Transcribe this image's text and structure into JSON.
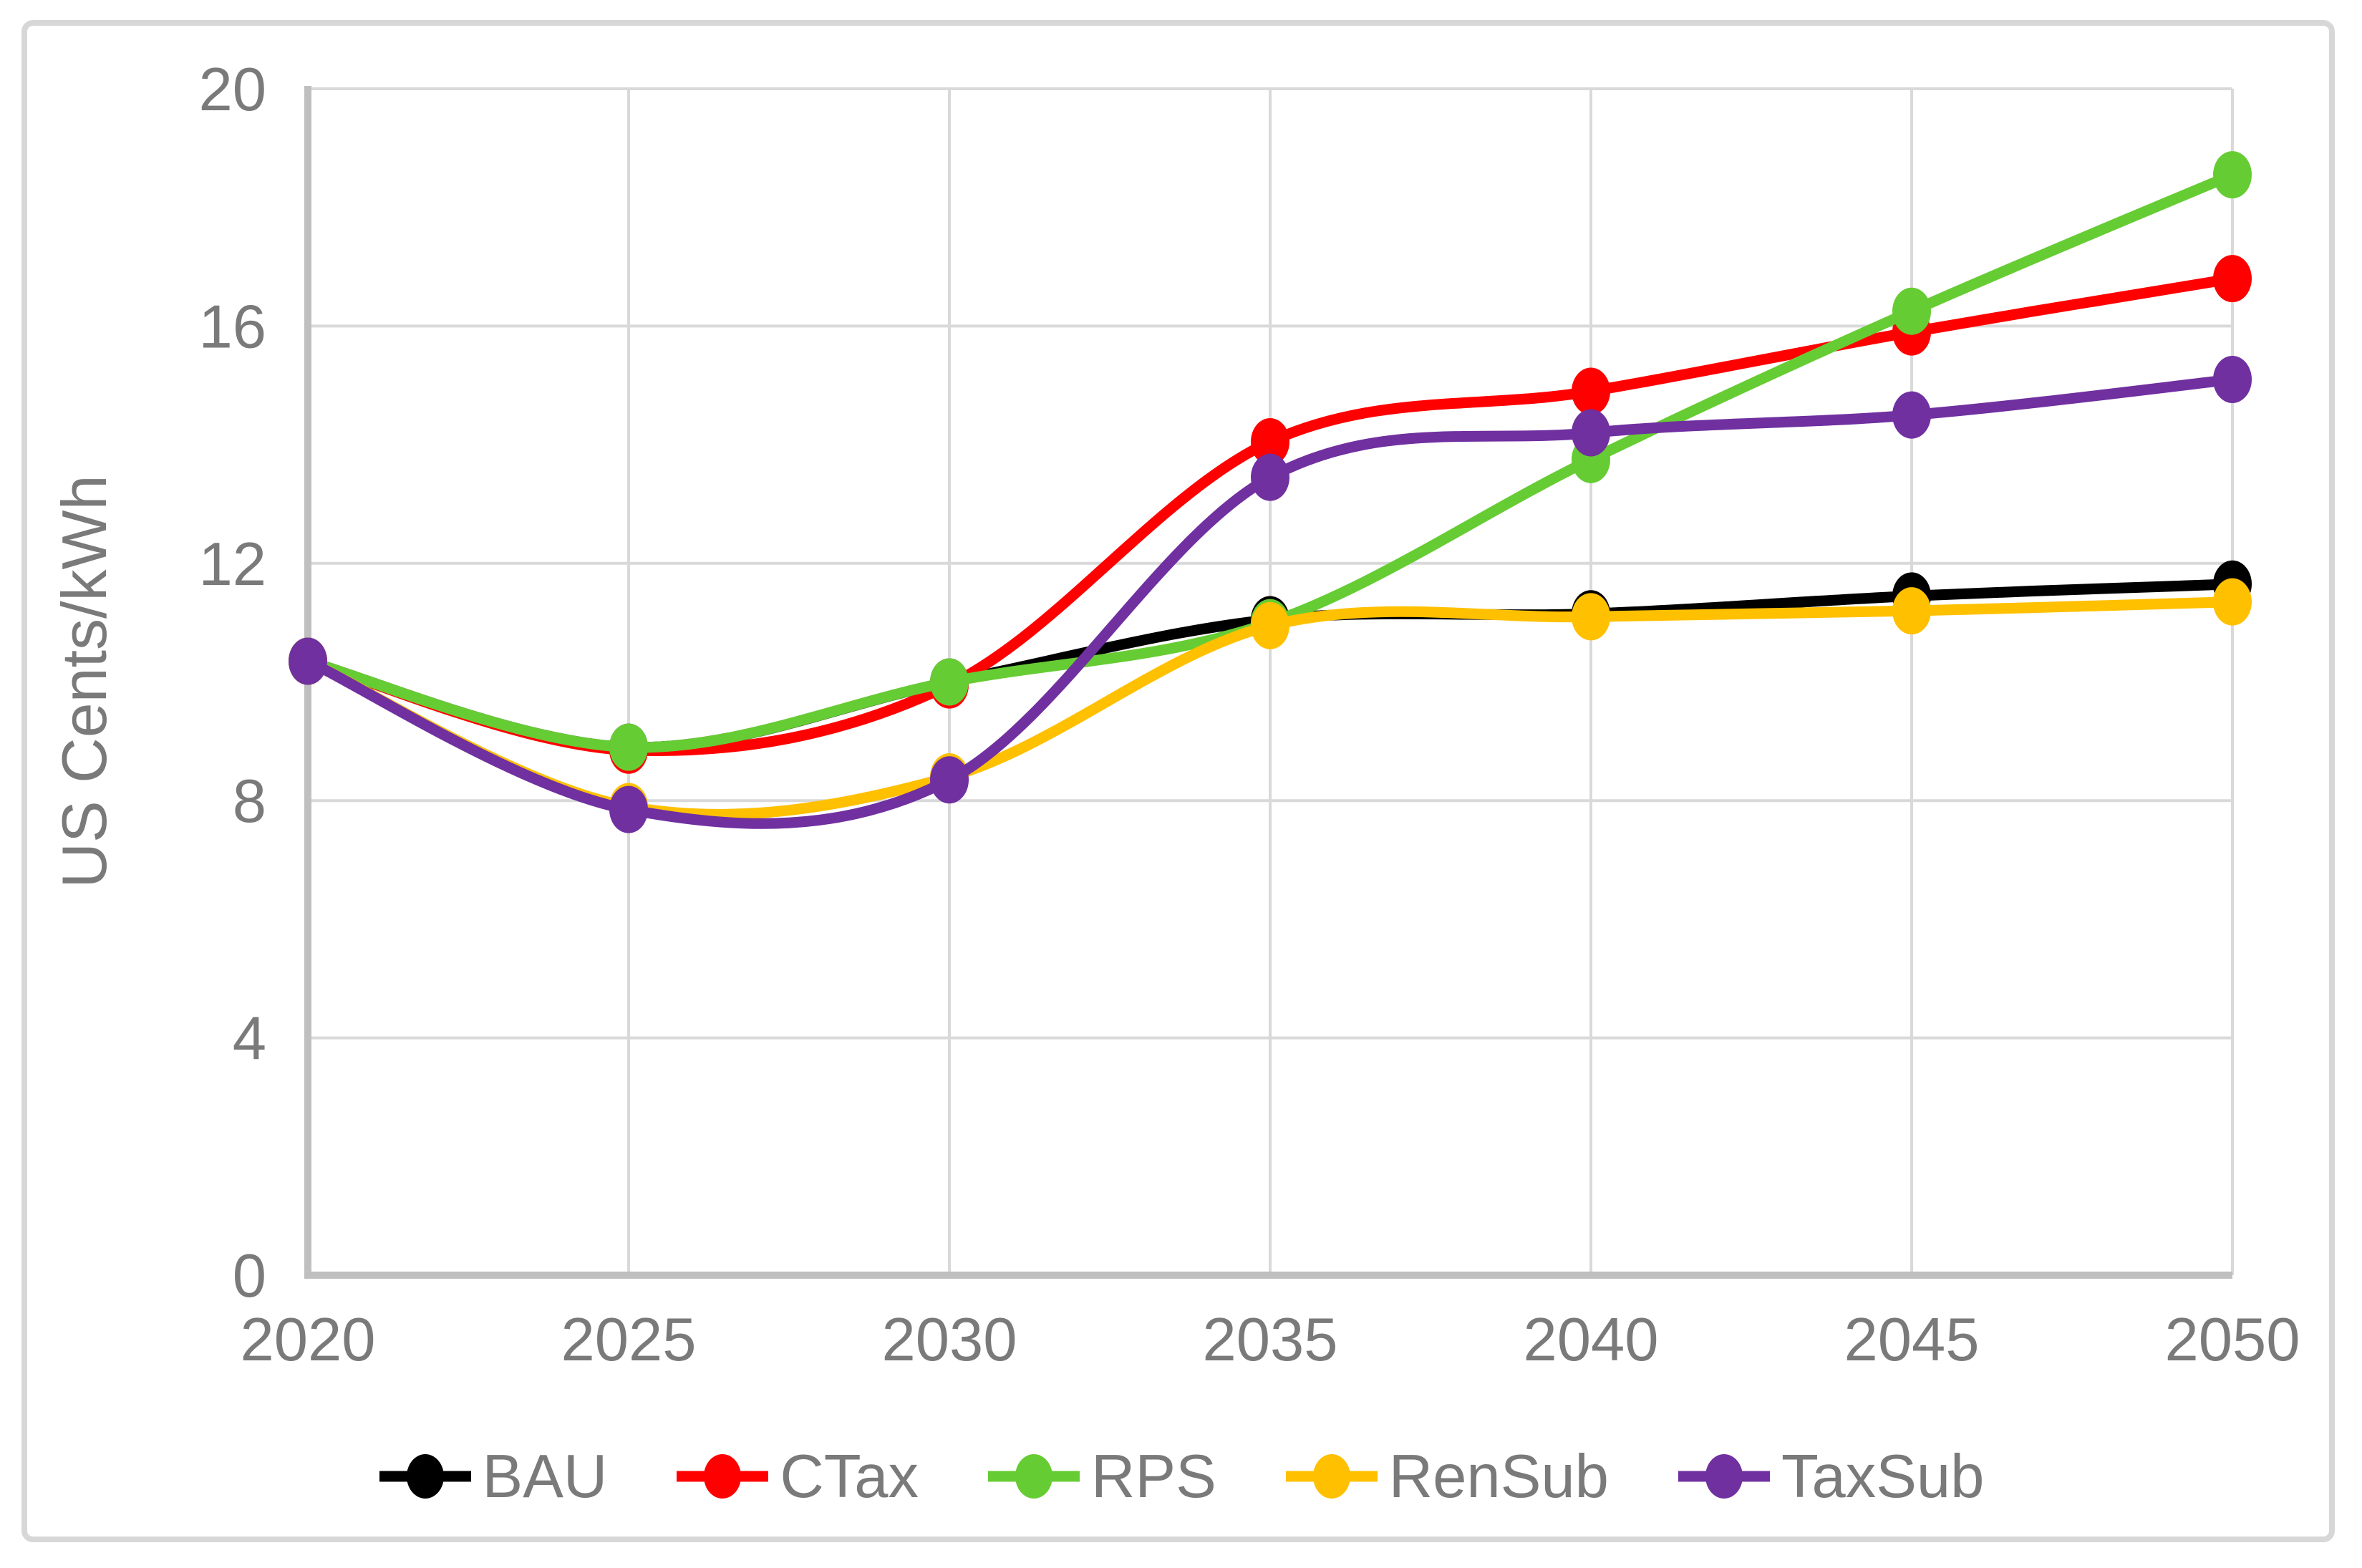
{
  "chart_data": {
    "type": "line",
    "title": "",
    "xlabel": "",
    "ylabel": "US Cents/kWh",
    "x": [
      2020,
      2025,
      2030,
      2035,
      2040,
      2045,
      2050
    ],
    "x_tick_labels": [
      "2020",
      "2025",
      "2030",
      "2035",
      "2040",
      "2045",
      "2050"
    ],
    "y_ticks": [
      0,
      4,
      8,
      12,
      16,
      20
    ],
    "ylim": [
      0,
      20
    ],
    "grid": true,
    "smooth_lines": true,
    "legend_position": "bottom",
    "series": [
      {
        "name": "BAU",
        "color": "#000000",
        "values": [
          10.35,
          8.9,
          10.0,
          11.05,
          11.15,
          11.45,
          11.65
        ]
      },
      {
        "name": "CTax",
        "color": "#ff0000",
        "values": [
          10.35,
          8.85,
          9.95,
          14.05,
          14.9,
          15.9,
          16.8
        ]
      },
      {
        "name": "RPS",
        "color": "#66cc33",
        "values": [
          10.35,
          8.9,
          10.0,
          11.0,
          13.75,
          16.25,
          18.55
        ]
      },
      {
        "name": "RenSub",
        "color": "#ffc000",
        "values": [
          10.35,
          7.9,
          8.4,
          10.95,
          11.1,
          11.2,
          11.35
        ]
      },
      {
        "name": "TaxSub",
        "color": "#7030a0",
        "values": [
          10.35,
          7.85,
          8.35,
          13.45,
          14.2,
          14.5,
          15.1
        ]
      }
    ],
    "colors": {
      "gridline": "#d9d9d9",
      "axis_line": "#bfbfbf",
      "tick_text": "#7a7a7a"
    }
  }
}
